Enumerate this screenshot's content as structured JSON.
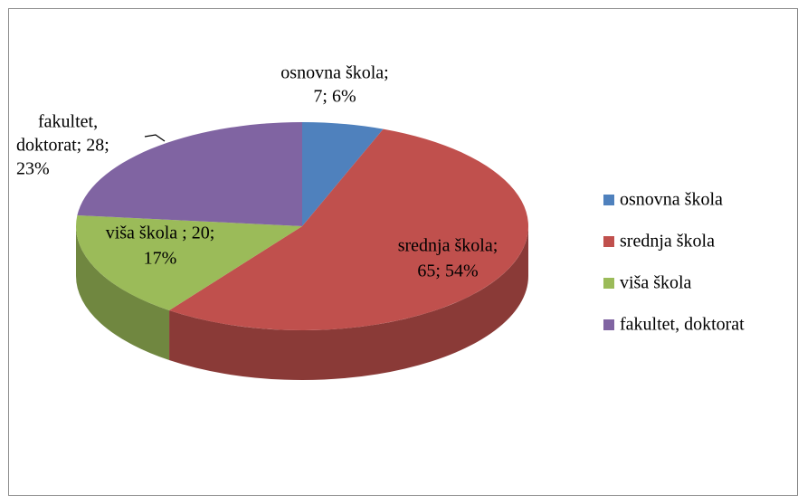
{
  "chart_data": {
    "type": "pie3d",
    "categories": [
      "osnovna škola",
      "srednja škola",
      "viša škola",
      "fakultet, doktorat"
    ],
    "values": [
      7,
      65,
      20,
      28
    ],
    "percentages": [
      6,
      54,
      17,
      23
    ],
    "value_labels": [
      [
        "osnovna škola;",
        "7; 6%"
      ],
      [
        "srednja škola;",
        "65; 54%"
      ],
      [
        "viša škola ; 20;",
        "17%"
      ],
      [
        "fakultet,",
        "doktorat; 28;",
        "23%"
      ]
    ],
    "colors": [
      "#4f81bd",
      "#c0504d",
      "#9bbb59",
      "#8064a2"
    ],
    "legend": "right"
  }
}
